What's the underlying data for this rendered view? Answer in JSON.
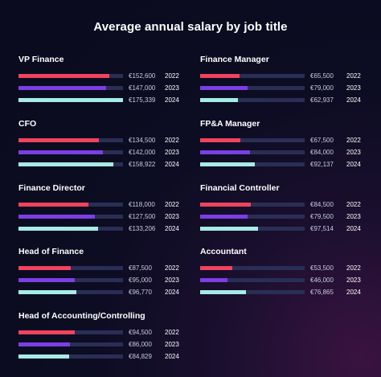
{
  "colors": {
    "y2022": "#f0435e",
    "y2023": "#7b3fe4",
    "y2024": "#a6ece6",
    "track": "#2a2e55"
  },
  "chart_data": {
    "type": "bar",
    "title": "Average annual salary by job title",
    "orientation": "horizontal",
    "series_names": [
      "2022",
      "2023",
      "2024"
    ],
    "panels": [
      {
        "name": "VP Finance",
        "xlim": [
          0,
          175339
        ],
        "bars": [
          {
            "year": "2022",
            "value": 152600,
            "label": "€152,600"
          },
          {
            "year": "2023",
            "value": 147000,
            "label": "€147,000"
          },
          {
            "year": "2024",
            "value": 175339,
            "label": "€175,339"
          }
        ]
      },
      {
        "name": "Finance Manager",
        "xlim": [
          0,
          175339
        ],
        "bars": [
          {
            "year": "2022",
            "value": 65500,
            "label": "€65,500"
          },
          {
            "year": "2023",
            "value": 79000,
            "label": "€79,000"
          },
          {
            "year": "2024",
            "value": 62937,
            "label": "€62,937"
          }
        ]
      },
      {
        "name": "CFO",
        "xlim": [
          0,
          175339
        ],
        "bars": [
          {
            "year": "2022",
            "value": 134500,
            "label": "€134,500"
          },
          {
            "year": "2023",
            "value": 142000,
            "label": "€142,000"
          },
          {
            "year": "2024",
            "value": 158922,
            "label": "€158,922"
          }
        ]
      },
      {
        "name": "FP&A Manager",
        "xlim": [
          0,
          175339
        ],
        "bars": [
          {
            "year": "2022",
            "value": 67500,
            "label": "€67,500"
          },
          {
            "year": "2023",
            "value": 84000,
            "label": "€84,000"
          },
          {
            "year": "2024",
            "value": 92137,
            "label": "€92,137"
          }
        ]
      },
      {
        "name": "Finance Director",
        "xlim": [
          0,
          175339
        ],
        "bars": [
          {
            "year": "2022",
            "value": 118000,
            "label": "€118,000"
          },
          {
            "year": "2023",
            "value": 127500,
            "label": "€127,500"
          },
          {
            "year": "2024",
            "value": 133206,
            "label": "€133,206"
          }
        ]
      },
      {
        "name": "Financial Controller",
        "xlim": [
          0,
          175339
        ],
        "bars": [
          {
            "year": "2022",
            "value": 84500,
            "label": "€84,500"
          },
          {
            "year": "2023",
            "value": 79500,
            "label": "€79,500"
          },
          {
            "year": "2024",
            "value": 97514,
            "label": "€97,514"
          }
        ]
      },
      {
        "name": "Head of Finance",
        "xlim": [
          0,
          175339
        ],
        "bars": [
          {
            "year": "2022",
            "value": 87500,
            "label": "€87,500"
          },
          {
            "year": "2023",
            "value": 95000,
            "label": "€95,000"
          },
          {
            "year": "2024",
            "value": 96770,
            "label": "€96,770"
          }
        ]
      },
      {
        "name": "Accountant",
        "xlim": [
          0,
          175339
        ],
        "bars": [
          {
            "year": "2022",
            "value": 53500,
            "label": "€53,500"
          },
          {
            "year": "2023",
            "value": 46000,
            "label": "€46,000"
          },
          {
            "year": "2024",
            "value": 76865,
            "label": "€76,865"
          }
        ]
      },
      {
        "name": "Head of Accounting/Controlling",
        "xlim": [
          0,
          175339
        ],
        "bars": [
          {
            "year": "2022",
            "value": 94500,
            "label": "€94,500"
          },
          {
            "year": "2023",
            "value": 86000,
            "label": "€86,000"
          },
          {
            "year": "2024",
            "value": 84829,
            "label": "€84,829"
          }
        ]
      }
    ]
  }
}
